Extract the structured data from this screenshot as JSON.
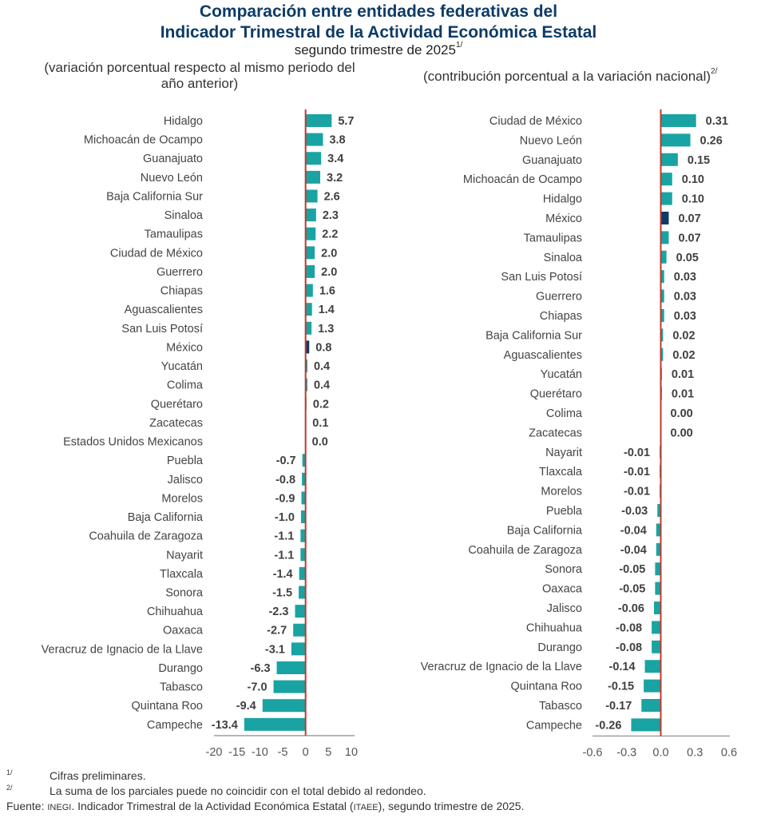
{
  "header": {
    "title_line1": "Comparación entre entidades federativas del",
    "title_line2": "Indicador Trimestral de la Actividad Económica Estatal",
    "subtitle": "segundo trimestre de 2025",
    "subtitle_note": "1/"
  },
  "chart_data": [
    {
      "type": "bar",
      "orientation": "horizontal",
      "title": "(variación porcentual respecto al mismo periodo del año anterior)",
      "xlim": [
        -20,
        10
      ],
      "xticks": [
        "-20",
        "-15",
        "-10",
        "-5",
        "0",
        "5",
        "10"
      ],
      "xtick_values": [
        -20,
        -15,
        -10,
        -5,
        0,
        5,
        10
      ],
      "highlight_category": "México",
      "colors": {
        "bar": "#1aa3a3",
        "highlight": "#0d3b66",
        "zero_line": "#c0392b",
        "axis": "#a0a0a0"
      },
      "categories": [
        "Hidalgo",
        "Michoacán de Ocampo",
        "Guanajuato",
        "Nuevo León",
        "Baja California Sur",
        "Sinaloa",
        "Tamaulipas",
        "Ciudad de México",
        "Guerrero",
        "Chiapas",
        "Aguascalientes",
        "San Luis Potosí",
        "México",
        "Yucatán",
        "Colima",
        "Querétaro",
        "Zacatecas",
        "Estados Unidos Mexicanos",
        "Puebla",
        "Jalisco",
        "Morelos",
        "Baja California",
        "Coahuila de Zaragoza",
        "Nayarit",
        "Tlaxcala",
        "Sonora",
        "Chihuahua",
        "Oaxaca",
        "Veracruz de Ignacio de la Llave",
        "Durango",
        "Tabasco",
        "Quintana Roo",
        "Campeche"
      ],
      "values": [
        5.7,
        3.8,
        3.4,
        3.2,
        2.6,
        2.3,
        2.2,
        2.0,
        2.0,
        1.6,
        1.4,
        1.3,
        0.8,
        0.4,
        0.4,
        0.2,
        0.1,
        0.0,
        -0.7,
        -0.8,
        -0.9,
        -1.0,
        -1.1,
        -1.1,
        -1.4,
        -1.5,
        -2.3,
        -2.7,
        -3.1,
        -6.3,
        -7.0,
        -9.4,
        -13.4
      ],
      "labels": [
        "5.7",
        "3.8",
        "3.4",
        "3.2",
        "2.6",
        "2.3",
        "2.2",
        "2.0",
        "2.0",
        "1.6",
        "1.4",
        "1.3",
        "0.8",
        "0.4",
        "0.4",
        "0.2",
        "0.1",
        "0.0",
        "-0.7",
        "-0.8",
        "-0.9",
        "-1.0",
        "-1.1",
        "-1.1",
        "-1.4",
        "-1.5",
        "-2.3",
        "-2.7",
        "-3.1",
        "-6.3",
        "-7.0",
        "-9.4",
        "-13.4"
      ]
    },
    {
      "type": "bar",
      "orientation": "horizontal",
      "title": "(contribución porcentual a la variación nacional)",
      "title_note": "2/",
      "xlim": [
        -0.6,
        0.6
      ],
      "xticks": [
        "-0.6",
        "-0.3",
        "0.0",
        "0.3",
        "0.6"
      ],
      "xtick_values": [
        -0.6,
        -0.3,
        0.0,
        0.3,
        0.6
      ],
      "highlight_category": "México",
      "colors": {
        "bar": "#1aa3a3",
        "highlight": "#0d3b66",
        "zero_line": "#c0392b",
        "axis": "#a0a0a0"
      },
      "categories": [
        "Ciudad de México",
        "Nuevo León",
        "Guanajuato",
        "Michoacán de Ocampo",
        "Hidalgo",
        "México",
        "Tamaulipas",
        "Sinaloa",
        "San Luis Potosí",
        "Guerrero",
        "Chiapas",
        "Baja California Sur",
        "Aguascalientes",
        "Yucatán",
        "Querétaro",
        "Colima",
        "Zacatecas",
        "Nayarit",
        "Tlaxcala",
        "Morelos",
        "Puebla",
        "Baja California",
        "Coahuila de Zaragoza",
        "Sonora",
        "Oaxaca",
        "Jalisco",
        "Chihuahua",
        "Durango",
        "Veracruz de Ignacio de la Llave",
        "Quintana Roo",
        "Tabasco",
        "Campeche"
      ],
      "values": [
        0.31,
        0.26,
        0.15,
        0.1,
        0.1,
        0.07,
        0.07,
        0.05,
        0.03,
        0.03,
        0.03,
        0.02,
        0.02,
        0.01,
        0.01,
        0.0,
        0.0,
        -0.01,
        -0.01,
        -0.01,
        -0.03,
        -0.04,
        -0.04,
        -0.05,
        -0.05,
        -0.06,
        -0.08,
        -0.08,
        -0.14,
        -0.15,
        -0.17,
        -0.26
      ],
      "labels": [
        "0.31",
        "0.26",
        "0.15",
        "0.10",
        "0.10",
        "0.07",
        "0.07",
        "0.05",
        "0.03",
        "0.03",
        "0.03",
        "0.02",
        "0.02",
        "0.01",
        "0.01",
        "0.00",
        "0.00",
        "-0.01",
        "-0.01",
        "-0.01",
        "-0.03",
        "-0.04",
        "-0.04",
        "-0.05",
        "-0.05",
        "-0.06",
        "-0.08",
        "-0.08",
        "-0.14",
        "-0.15",
        "-0.17",
        "-0.26"
      ]
    }
  ],
  "footnotes": [
    {
      "mark": "1/",
      "text": "Cifras preliminares."
    },
    {
      "mark": "2/",
      "text": "La suma de los parciales puede no coincidir con el total debido al redondeo."
    }
  ],
  "source": {
    "label": "Fuente:",
    "org": "INEGI",
    "text_before": ". Indicador Trimestral de la Actividad Económica Estatal (",
    "abbr": "ITAEE",
    "text_after": "), segundo trimestre de 2025."
  }
}
